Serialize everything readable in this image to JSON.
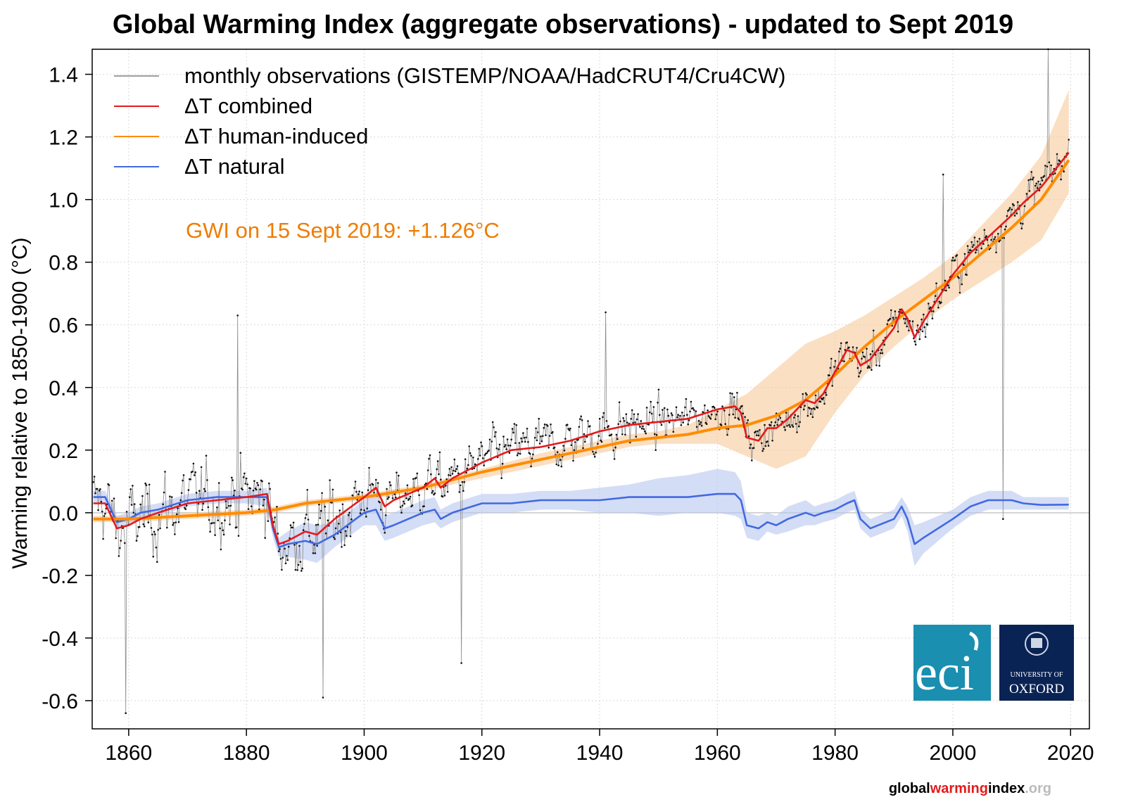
{
  "title": "Global Warming Index (aggregate observations) - updated to Sept 2019",
  "footer": {
    "part1": "global",
    "part2": "warming",
    "part3": "index",
    "part4": ".org"
  },
  "logos": {
    "eci": "eci",
    "oxford_small": "UNIVERSITY OF",
    "oxford_big": "OXFORD"
  },
  "chart_data": {
    "type": "line",
    "title": "Global Warming Index (aggregate observations) - updated to Sept 2019",
    "xlabel": "",
    "ylabel": "Warming relative to 1850-1900 (°C)",
    "xlim": [
      1853.8,
      2023.2
    ],
    "ylim": [
      -0.69,
      1.48
    ],
    "xticks": [
      1860,
      1880,
      1900,
      1920,
      1940,
      1960,
      1980,
      2000,
      2020
    ],
    "xtick_labels": [
      "1860",
      "1880",
      "1900",
      "1920",
      "1940",
      "1960",
      "1980",
      "2000",
      "2020"
    ],
    "yticks": [
      -0.6,
      -0.4,
      -0.2,
      0.0,
      0.2,
      0.4,
      0.6,
      0.8,
      1.0,
      1.2,
      1.4
    ],
    "ytick_labels": [
      "-0.6",
      "-0.4",
      "-0.2",
      "0.0",
      "0.2",
      "0.4",
      "0.6",
      "0.8",
      "1.0",
      "1.2",
      "1.4"
    ],
    "grid": true,
    "legend_position": "top-left",
    "legend": [
      {
        "label": "monthly observations (GISTEMP/NOAA/HadCRUT4/Cru4CW)",
        "color": "#7f7f7f"
      },
      {
        "label": "ΔT combined",
        "color": "#e41a1c"
      },
      {
        "label": "ΔT human-induced",
        "color": "#ff8c00"
      },
      {
        "label": "ΔT natural",
        "color": "#4169e1"
      }
    ],
    "annotation": {
      "text": "GWI on 15 Sept 2019: +1.126°C",
      "color": "#ee7d00"
    },
    "series": [
      {
        "name": "ΔT human-induced",
        "color": "#ff8c00",
        "x": [
          1854,
          1860,
          1870,
          1880,
          1885,
          1890,
          1900,
          1910,
          1920,
          1930,
          1940,
          1945,
          1950,
          1955,
          1960,
          1965,
          1970,
          1975,
          1980,
          1985,
          1990,
          1995,
          2000,
          2005,
          2010,
          2015,
          2019.7
        ],
        "y": [
          -0.02,
          -0.02,
          -0.01,
          0.0,
          0.01,
          0.03,
          0.05,
          0.08,
          0.13,
          0.17,
          0.21,
          0.23,
          0.24,
          0.25,
          0.27,
          0.28,
          0.31,
          0.36,
          0.44,
          0.53,
          0.61,
          0.68,
          0.75,
          0.83,
          0.91,
          1.0,
          1.126
        ],
        "band_lo": [
          -0.03,
          -0.03,
          -0.02,
          -0.01,
          0.0,
          0.02,
          0.04,
          0.07,
          0.11,
          0.15,
          0.19,
          0.21,
          0.22,
          0.22,
          0.22,
          0.18,
          0.14,
          0.18,
          0.32,
          0.44,
          0.53,
          0.61,
          0.68,
          0.74,
          0.8,
          0.87,
          1.02
        ],
        "band_hi": [
          -0.01,
          -0.01,
          0.0,
          0.01,
          0.02,
          0.04,
          0.06,
          0.09,
          0.14,
          0.19,
          0.23,
          0.25,
          0.26,
          0.28,
          0.33,
          0.38,
          0.46,
          0.54,
          0.58,
          0.63,
          0.69,
          0.75,
          0.82,
          0.92,
          1.02,
          1.14,
          1.35
        ]
      },
      {
        "name": "ΔT natural",
        "color": "#4169e1",
        "x": [
          1854,
          1856,
          1858,
          1860,
          1862,
          1865,
          1870,
          1875,
          1880,
          1883.5,
          1884.5,
          1885.5,
          1887,
          1890,
          1892,
          1895,
          1900,
          1902,
          1903.5,
          1905,
          1910,
          1912,
          1913,
          1915,
          1920,
          1925,
          1930,
          1935,
          1940,
          1945,
          1950,
          1955,
          1960,
          1963,
          1964,
          1965,
          1967,
          1968.5,
          1970,
          1972,
          1975,
          1976.5,
          1978,
          1980,
          1982,
          1983.3,
          1984.3,
          1986,
          1990,
          1991.3,
          1992.3,
          1993.5,
          1995,
          2000,
          2003,
          2006,
          2010,
          2012,
          2015,
          2019.7
        ],
        "y": [
          0.05,
          0.05,
          -0.03,
          -0.02,
          0.0,
          0.01,
          0.04,
          0.05,
          0.05,
          0.05,
          -0.05,
          -0.11,
          -0.1,
          -0.09,
          -0.1,
          -0.07,
          0.0,
          0.01,
          -0.05,
          -0.04,
          0.0,
          0.01,
          -0.02,
          0.0,
          0.03,
          0.03,
          0.04,
          0.04,
          0.04,
          0.05,
          0.05,
          0.05,
          0.06,
          0.06,
          0.04,
          -0.04,
          -0.05,
          -0.03,
          -0.04,
          -0.02,
          0.0,
          -0.01,
          0.0,
          0.01,
          0.03,
          0.04,
          -0.02,
          -0.05,
          -0.02,
          0.02,
          -0.02,
          -0.1,
          -0.08,
          -0.02,
          0.02,
          0.04,
          0.04,
          0.03,
          0.025,
          0.026
        ],
        "band_lo": [
          0.03,
          0.03,
          -0.05,
          -0.04,
          -0.02,
          -0.01,
          0.02,
          0.03,
          0.03,
          0.02,
          -0.08,
          -0.14,
          -0.14,
          -0.15,
          -0.16,
          -0.11,
          -0.04,
          -0.04,
          -0.09,
          -0.08,
          -0.04,
          -0.03,
          -0.05,
          -0.03,
          0.0,
          0.0,
          0.01,
          0.01,
          0.0,
          0.0,
          -0.01,
          0.0,
          0.0,
          -0.01,
          -0.02,
          -0.08,
          -0.09,
          -0.06,
          -0.07,
          -0.06,
          -0.04,
          -0.04,
          -0.03,
          -0.02,
          0.0,
          0.01,
          -0.05,
          -0.08,
          -0.05,
          -0.01,
          -0.06,
          -0.17,
          -0.13,
          -0.05,
          -0.01,
          0.01,
          0.01,
          0.01,
          0.01,
          0.01
        ],
        "band_hi": [
          0.07,
          0.07,
          -0.01,
          0.0,
          0.02,
          0.03,
          0.06,
          0.07,
          0.07,
          0.08,
          -0.02,
          -0.08,
          -0.06,
          -0.03,
          -0.04,
          -0.03,
          0.04,
          0.06,
          -0.01,
          0.0,
          0.04,
          0.05,
          0.01,
          0.03,
          0.06,
          0.06,
          0.07,
          0.07,
          0.08,
          0.09,
          0.11,
          0.12,
          0.14,
          0.13,
          0.1,
          0.0,
          -0.01,
          0.0,
          -0.01,
          0.02,
          0.04,
          0.02,
          0.03,
          0.04,
          0.06,
          0.07,
          0.01,
          -0.02,
          0.01,
          0.05,
          0.02,
          -0.04,
          -0.03,
          0.01,
          0.05,
          0.07,
          0.07,
          0.05,
          0.05,
          0.05
        ]
      },
      {
        "name": "ΔT combined",
        "color": "#e41a1c",
        "x": [
          1854,
          1856,
          1858,
          1860,
          1862,
          1865,
          1870,
          1875,
          1880,
          1883.5,
          1884.5,
          1885.5,
          1887,
          1890,
          1892,
          1895,
          1900,
          1902,
          1903.5,
          1905,
          1910,
          1912,
          1913,
          1915,
          1920,
          1925,
          1930,
          1935,
          1940,
          1945,
          1950,
          1955,
          1960,
          1963,
          1964,
          1965,
          1967,
          1968.5,
          1970,
          1972,
          1975,
          1976.5,
          1978,
          1980,
          1982,
          1983.3,
          1984.3,
          1986,
          1990,
          1991.3,
          1992.3,
          1993.5,
          1995,
          2000,
          2003,
          2006,
          2010,
          2012,
          2015,
          2019.7
        ],
        "y": [
          0.03,
          0.03,
          -0.05,
          -0.04,
          -0.02,
          0.0,
          0.03,
          0.04,
          0.05,
          0.06,
          -0.04,
          -0.1,
          -0.09,
          -0.06,
          -0.07,
          -0.02,
          0.05,
          0.08,
          0.02,
          0.04,
          0.08,
          0.11,
          0.08,
          0.11,
          0.16,
          0.2,
          0.21,
          0.23,
          0.26,
          0.28,
          0.29,
          0.3,
          0.33,
          0.34,
          0.32,
          0.24,
          0.23,
          0.27,
          0.27,
          0.3,
          0.36,
          0.35,
          0.38,
          0.45,
          0.52,
          0.51,
          0.47,
          0.49,
          0.59,
          0.65,
          0.62,
          0.56,
          0.61,
          0.76,
          0.83,
          0.88,
          0.95,
          0.99,
          1.04,
          1.15
        ]
      }
    ],
    "observations_note": "dense monthly series, grey thin line with black dots",
    "observations": {
      "name": "monthly observations (GISTEMP/NOAA/HadCRUT4/Cru4CW)",
      "x_start": 1854,
      "x_end": 2019.7,
      "step": 0.1667,
      "marked_values": [
        [
          1878.5,
          0.63
        ],
        [
          1859.5,
          -0.64
        ],
        [
          1893,
          -0.59
        ],
        [
          1916.5,
          -0.48
        ],
        [
          1941,
          0.64
        ],
        [
          2016.2,
          1.48
        ],
        [
          1998.3,
          1.08
        ],
        [
          2008.5,
          -0.02
        ]
      ]
    }
  }
}
